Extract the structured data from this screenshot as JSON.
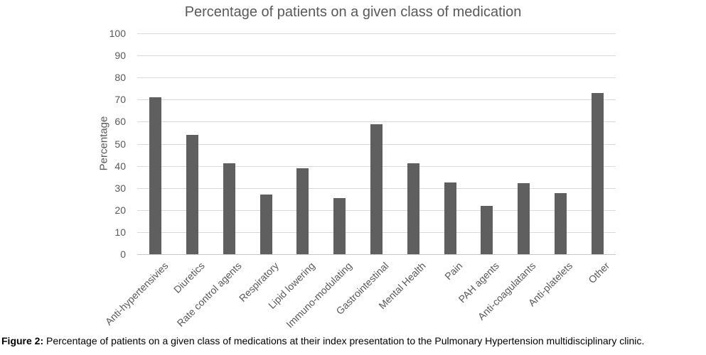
{
  "chart_data": {
    "type": "bar",
    "title": "Percentage of patients on a given class of medication",
    "xlabel": "",
    "ylabel": "Percentage",
    "ylim": [
      0,
      100
    ],
    "ytick_step": 10,
    "grid": true,
    "legend": false,
    "categories": [
      "Anti-hypertensivies",
      "Diuretics",
      "Rate control agents",
      "Respiratory",
      "Lipid lowering",
      "Immuno-modulating",
      "Gastrointestinal",
      "Mental Health",
      "Pain",
      "PAH agents",
      "Anti-coagulatants",
      "Anti-platelets",
      "Other"
    ],
    "values": [
      71,
      54,
      41,
      27,
      39,
      25.5,
      59,
      41,
      32.5,
      22,
      32,
      27.5,
      73
    ]
  },
  "figure": {
    "caption_label": "Figure 2:",
    "caption_text": " Percentage of patients on a given class of medications at their index presentation to the Pulmonary Hypertension multidisciplinary clinic."
  },
  "colors": {
    "bar": "#5f5f5f",
    "gridline": "#d9d9d9",
    "axis_line": "#c6c6c6",
    "axis_text": "#595959",
    "title_text": "#595959",
    "caption_text": "#000000"
  }
}
